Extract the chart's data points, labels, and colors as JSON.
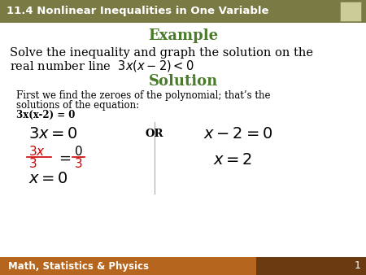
{
  "title_bar_text": "11.4 Nonlinear Inequalities in One Variable",
  "title_bar_bg": "#7a7a45",
  "title_bar_fg": "#ffffff",
  "example_label": "Example",
  "example_color": "#4a7a2a",
  "problem_line1": "Solve the inequality and graph the solution on the",
  "solution_label": "Solution",
  "solution_color": "#4a7a2a",
  "desc_line1": "First we find the zeroes of the polynomial; that’s the",
  "desc_line2": "solutions of the equation:",
  "desc_line3": "3x(x-2) = 0",
  "or_label": "OR",
  "footer_text": "Math, Statistics & Physics",
  "footer_bg": "#b5651d",
  "footer_dark_bg": "#6b3a10",
  "footer_fg": "#ffffff",
  "page_num": "1",
  "bg_color": "#ffffff",
  "text_color": "#000000",
  "fraction_color": "#cc0000",
  "divider_line_color": "#aaaaaa",
  "icon_bg": "#cccc99",
  "icon_border": "#888855"
}
